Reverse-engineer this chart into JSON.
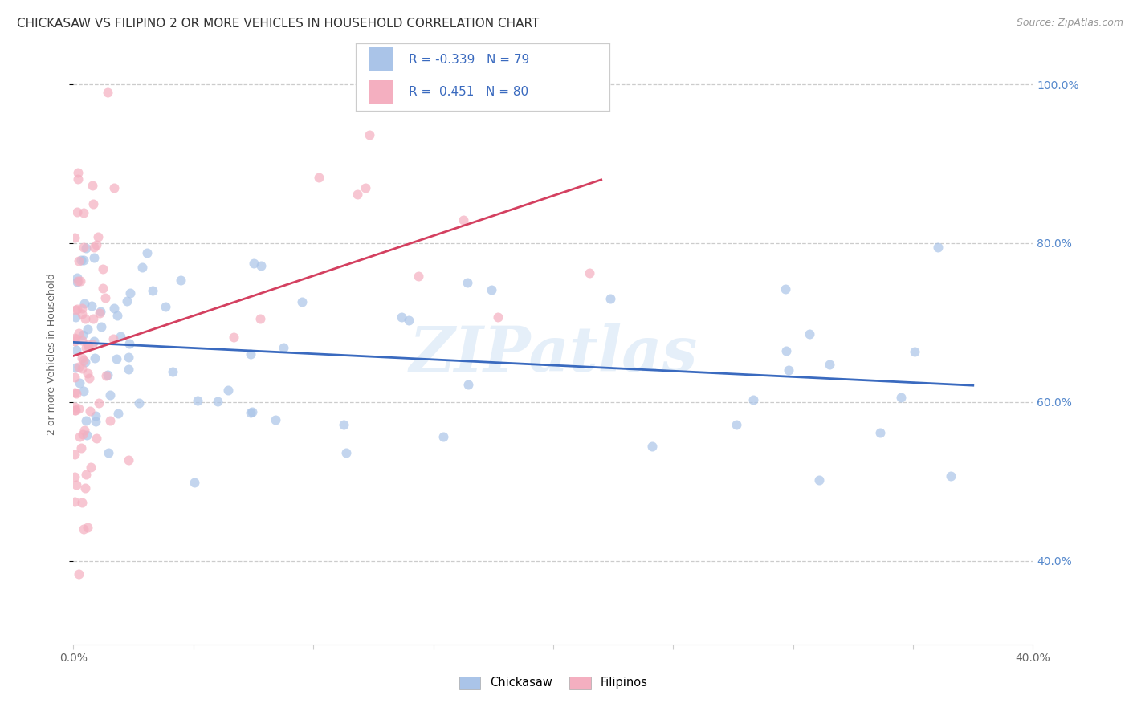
{
  "title": "CHICKASAW VS FILIPINO 2 OR MORE VEHICLES IN HOUSEHOLD CORRELATION CHART",
  "source": "Source: ZipAtlas.com",
  "ylabel": "2 or more Vehicles in Household",
  "xlim": [
    0.0,
    0.4
  ],
  "ylim": [
    0.295,
    1.025
  ],
  "yticks": [
    0.4,
    0.6,
    0.8,
    1.0
  ],
  "ytick_labels": [
    "40.0%",
    "60.0%",
    "80.0%",
    "100.0%"
  ],
  "xticks": [
    0.0,
    0.05,
    0.1,
    0.15,
    0.2,
    0.25,
    0.3,
    0.35,
    0.4
  ],
  "xtick_labels": [
    "0.0%",
    "",
    "",
    "",
    "",
    "",
    "",
    "",
    "40.0%"
  ],
  "chickasaw_R": -0.339,
  "chickasaw_N": 79,
  "filipino_R": 0.451,
  "filipino_N": 80,
  "chickasaw_color": "#aac4e8",
  "filipino_color": "#f4afc0",
  "chickasaw_line_color": "#3a6abf",
  "filipino_line_color": "#d44060",
  "watermark": "ZIPatlas",
  "legend_chickasaw": "Chickasaw",
  "legend_filipino": "Filipinos",
  "title_fontsize": 11,
  "axis_label_fontsize": 9,
  "tick_fontsize": 10,
  "source_fontsize": 9,
  "marker_size": 75,
  "legend_text_color": "#3a6abf",
  "legend_R_color": "#cc2244"
}
